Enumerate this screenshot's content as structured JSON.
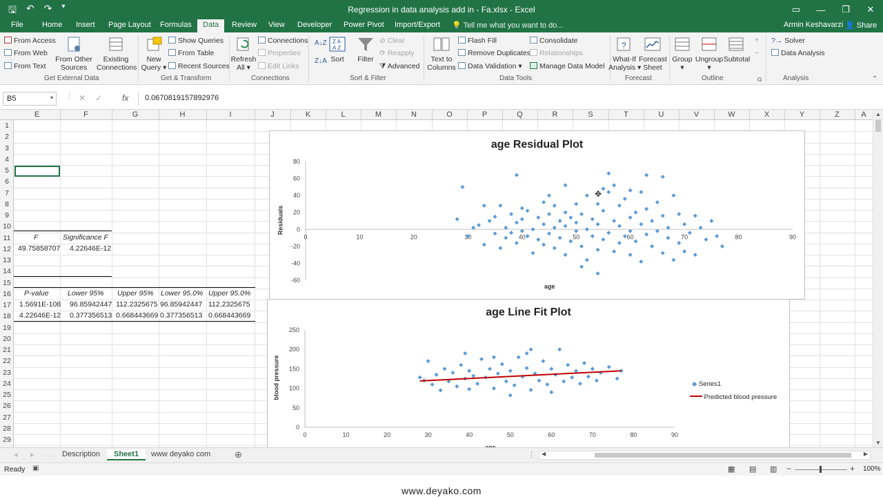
{
  "window": {
    "title": "Regression in data analysis add in - Fa.xlsx - Excel",
    "user": "Armin Keshavarzi",
    "share": "Share"
  },
  "tabs": [
    "File",
    "Home",
    "Insert",
    "Page Layout",
    "Formulas",
    "Data",
    "Review",
    "View",
    "Developer",
    "Power Pivot",
    "Import/Export"
  ],
  "active_tab": "Data",
  "tell_me": "Tell me what you want to do...",
  "ribbon": {
    "get_external": {
      "from_access": "From Access",
      "from_web": "From Web",
      "from_text": "From Text",
      "from_other_1": "From Other",
      "from_other_2": "Sources",
      "existing_1": "Existing",
      "existing_2": "Connections",
      "label": "Get External Data"
    },
    "get_transform": {
      "new_query_1": "New",
      "new_query_2": "Query",
      "show_queries": "Show Queries",
      "from_table": "From Table",
      "recent_sources": "Recent Sources",
      "label": "Get & Transform"
    },
    "connections": {
      "refresh_1": "Refresh",
      "refresh_2": "All",
      "connections": "Connections",
      "properties": "Properties",
      "edit_links": "Edit Links",
      "label": "Connections"
    },
    "sort_filter": {
      "sort": "Sort",
      "filter": "Filter",
      "clear": "Clear",
      "reapply": "Reapply",
      "advanced": "Advanced",
      "label": "Sort & Filter"
    },
    "data_tools": {
      "text_to_1": "Text to",
      "text_to_2": "Columns",
      "flash_fill": "Flash Fill",
      "remove_duplicates": "Remove Duplicates",
      "data_validation": "Data Validation",
      "consolidate": "Consolidate",
      "relationships": "Relationships",
      "manage_data_model": "Manage Data Model",
      "label": "Data Tools"
    },
    "forecast": {
      "whatif_1": "What-If",
      "whatif_2": "Analysis",
      "forecast_1": "Forecast",
      "forecast_2": "Sheet",
      "label": "Forecast"
    },
    "outline": {
      "group": "Group",
      "ungroup": "Ungroup",
      "subtotal": "Subtotal",
      "label": "Outline"
    },
    "analysis": {
      "solver": "Solver",
      "data_analysis": "Data Analysis",
      "label": "Analysis"
    }
  },
  "formula_bar": {
    "name_box": "B5",
    "fx": "fx",
    "value": "0.0670819157892976"
  },
  "columns": [
    "E",
    "F",
    "G",
    "H",
    "I",
    "J",
    "K",
    "L",
    "M",
    "N",
    "O",
    "P",
    "Q",
    "R",
    "S",
    "T",
    "U",
    "V",
    "W",
    "X",
    "Y",
    "Z",
    "A"
  ],
  "rows": [
    "1",
    "2",
    "3",
    "4",
    "5",
    "6",
    "7",
    "8",
    "9",
    "10",
    "11",
    "12",
    "13",
    "14",
    "15",
    "16",
    "17",
    "18",
    "19",
    "20",
    "21",
    "22",
    "23",
    "24",
    "25",
    "26",
    "27",
    "28",
    "29"
  ],
  "cells": {
    "r11": [
      "F",
      "Significance F"
    ],
    "r12": [
      "49.75858707",
      "4.22646E-12"
    ],
    "r16": [
      "P-value",
      "Lower 95%",
      "Upper 95%",
      "Lower 95.0%",
      "Upper 95.0%"
    ],
    "r17": [
      "1.5691E-108",
      "96.85942447",
      "112.2325675",
      "96.85942447",
      "112.2325675"
    ],
    "r18": [
      "4.22646E-12",
      "0.377356513",
      "0.668443669",
      "0.377356513",
      "0.668443669"
    ]
  },
  "chart_data": [
    {
      "type": "scatter",
      "title": "age  Residual Plot",
      "xlabel": "age",
      "ylabel": "Residuals",
      "xlim": [
        0,
        90
      ],
      "ylim": [
        -60,
        80
      ],
      "xticks": [
        "0",
        "10",
        "20",
        "30",
        "40",
        "50",
        "60",
        "70",
        "80",
        "90"
      ],
      "yticks": [
        "80",
        "60",
        "40",
        "20",
        "0",
        "-20",
        "-40",
        "-60"
      ],
      "grid": false,
      "legend": "none",
      "color": "#5b9bd5",
      "series": [
        {
          "points": [
            [
              29,
              50
            ],
            [
              28,
              12
            ],
            [
              30,
              -8
            ],
            [
              31,
              2
            ],
            [
              32,
              5
            ],
            [
              33,
              -18
            ],
            [
              33,
              28
            ],
            [
              34,
              10
            ],
            [
              35,
              -5
            ],
            [
              35,
              15
            ],
            [
              36,
              -22
            ],
            [
              36,
              28
            ],
            [
              37,
              2
            ],
            [
              37,
              -10
            ],
            [
              38,
              18
            ],
            [
              38,
              -4
            ],
            [
              39,
              8
            ],
            [
              39,
              -16
            ],
            [
              40,
              25
            ],
            [
              40,
              -2
            ],
            [
              40,
              12
            ],
            [
              41,
              -8
            ],
            [
              41,
              22
            ],
            [
              42,
              0
            ],
            [
              42,
              -28
            ],
            [
              43,
              14
            ],
            [
              43,
              -12
            ],
            [
              44,
              32
            ],
            [
              44,
              6
            ],
            [
              44,
              -18
            ],
            [
              45,
              -5
            ],
            [
              45,
              18
            ],
            [
              46,
              2
            ],
            [
              46,
              -22
            ],
            [
              46,
              28
            ],
            [
              47,
              10
            ],
            [
              47,
              -10
            ],
            [
              48,
              -30
            ],
            [
              48,
              20
            ],
            [
              48,
              4
            ],
            [
              49,
              -14
            ],
            [
              49,
              14
            ],
            [
              50,
              30
            ],
            [
              50,
              -2
            ],
            [
              50,
              8
            ],
            [
              51,
              -20
            ],
            [
              51,
              18
            ],
            [
              52,
              0
            ],
            [
              52,
              -36
            ],
            [
              52,
              40
            ],
            [
              53,
              12
            ],
            [
              53,
              -8
            ],
            [
              54,
              -24
            ],
            [
              54,
              30
            ],
            [
              54,
              6
            ],
            [
              55,
              -12
            ],
            [
              55,
              22
            ],
            [
              56,
              66
            ],
            [
              56,
              -4
            ],
            [
              56,
              44
            ],
            [
              57,
              10
            ],
            [
              57,
              -26
            ],
            [
              58,
              -16
            ],
            [
              58,
              28
            ],
            [
              58,
              4
            ],
            [
              59,
              -8
            ],
            [
              59,
              36
            ],
            [
              60,
              14
            ],
            [
              60,
              -30
            ],
            [
              60,
              -2
            ],
            [
              61,
              20
            ],
            [
              61,
              -14
            ],
            [
              62,
              6
            ],
            [
              62,
              -38
            ],
            [
              62,
              44
            ],
            [
              63,
              -6
            ],
            [
              63,
              24
            ],
            [
              64,
              10
            ],
            [
              64,
              -20
            ],
            [
              65,
              32
            ],
            [
              65,
              -2
            ],
            [
              66,
              -28
            ],
            [
              66,
              16
            ],
            [
              67,
              -10
            ],
            [
              67,
              2
            ],
            [
              68,
              40
            ],
            [
              68,
              -36
            ],
            [
              69,
              18
            ],
            [
              69,
              -16
            ],
            [
              70,
              6
            ],
            [
              70,
              -26
            ],
            [
              71,
              -4
            ],
            [
              72,
              16
            ],
            [
              72,
              -30
            ],
            [
              73,
              2
            ],
            [
              74,
              -12
            ],
            [
              75,
              10
            ],
            [
              76,
              -8
            ],
            [
              77,
              -20
            ],
            [
              55,
              48
            ],
            [
              57,
              52
            ],
            [
              48,
              52
            ],
            [
              63,
              64
            ],
            [
              66,
              62
            ],
            [
              39,
              64
            ],
            [
              54,
              -52
            ],
            [
              60,
              46
            ],
            [
              45,
              40
            ],
            [
              51,
              -44
            ]
          ]
        }
      ]
    },
    {
      "type": "scatter",
      "title": "age Line Fit  Plot",
      "xlabel": "age",
      "ylabel": "blood pressure",
      "xlim": [
        0,
        90
      ],
      "ylim": [
        0,
        250
      ],
      "xticks": [
        "0",
        "10",
        "20",
        "30",
        "40",
        "50",
        "60",
        "70",
        "80",
        "90"
      ],
      "yticks": [
        "250",
        "200",
        "150",
        "100",
        "50",
        "0"
      ],
      "grid": false,
      "legend": "right",
      "series": [
        {
          "name": "Series1",
          "color": "#5b9bd5",
          "points": [
            [
              28,
              128
            ],
            [
              29,
              120
            ],
            [
              30,
              170
            ],
            [
              31,
              110
            ],
            [
              32,
              135
            ],
            [
              33,
              95
            ],
            [
              34,
              150
            ],
            [
              35,
              118
            ],
            [
              36,
              140
            ],
            [
              37,
              105
            ],
            [
              38,
              160
            ],
            [
              39,
              125
            ],
            [
              40,
              98
            ],
            [
              40,
              145
            ],
            [
              41,
              132
            ],
            [
              42,
              112
            ],
            [
              43,
              175
            ],
            [
              44,
              128
            ],
            [
              45,
              150
            ],
            [
              46,
              100
            ],
            [
              47,
              138
            ],
            [
              48,
              162
            ],
            [
              49,
              118
            ],
            [
              50,
              145
            ],
            [
              51,
              108
            ],
            [
              52,
              180
            ],
            [
              53,
              130
            ],
            [
              54,
              152
            ],
            [
              55,
              96
            ],
            [
              55,
              200
            ],
            [
              56,
              138
            ],
            [
              57,
              120
            ],
            [
              58,
              170
            ],
            [
              59,
              110
            ],
            [
              60,
              150
            ],
            [
              61,
              135
            ],
            [
              62,
              200
            ],
            [
              63,
              118
            ],
            [
              64,
              160
            ],
            [
              65,
              128
            ],
            [
              66,
              145
            ],
            [
              67,
              112
            ],
            [
              68,
              165
            ],
            [
              69,
              130
            ],
            [
              70,
              150
            ],
            [
              71,
              120
            ],
            [
              72,
              140
            ],
            [
              74,
              155
            ],
            [
              76,
              125
            ],
            [
              77,
              145
            ],
            [
              50,
              82
            ],
            [
              54,
              190
            ],
            [
              46,
              180
            ],
            [
              60,
              90
            ],
            [
              39,
              190
            ]
          ]
        },
        {
          "name": "Predicted blood pressure",
          "color": "#c00000",
          "points": [
            [
              28,
              119
            ],
            [
              77,
              145
            ]
          ]
        }
      ]
    }
  ],
  "sheet_tabs": [
    "Description",
    "Sheet1",
    "www deyako com"
  ],
  "active_sheet": "Sheet1",
  "status": {
    "ready": "Ready",
    "zoom": "100%"
  },
  "footer": "www.deyako.com"
}
